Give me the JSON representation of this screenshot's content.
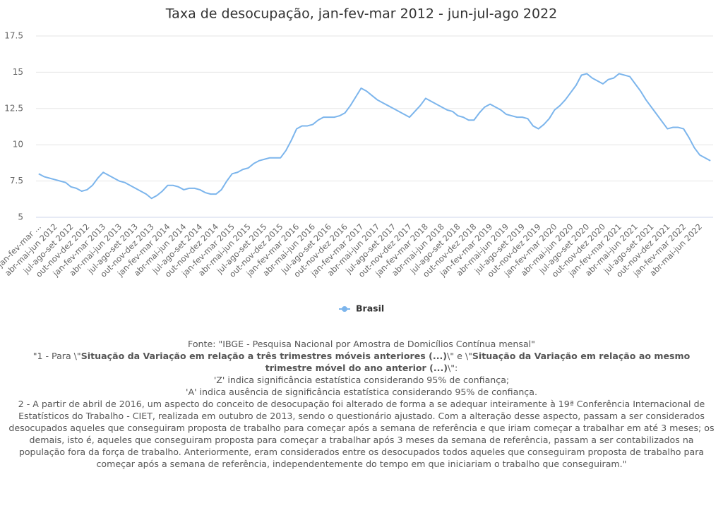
{
  "chart_data": {
    "type": "line",
    "title": "Taxa de desocupação, jan-fev-mar 2012 - jun-jul-ago 2022",
    "categories": [
      "jan-fev-mar ...",
      null,
      null,
      "abr-mai-jun 2012",
      null,
      null,
      "jul-ago-set 2012",
      null,
      null,
      "out-nov-dez 2012",
      null,
      null,
      "jan-fev-mar 2013",
      null,
      null,
      "abr-mai-jun 2013",
      null,
      null,
      "jul-ago-set 2013",
      null,
      null,
      "out-nov-dez 2013",
      null,
      null,
      "jan-fev-mar 2014",
      null,
      null,
      "abr-mai-jun 2014",
      null,
      null,
      "jul-ago-set 2014",
      null,
      null,
      "out-nov-dez 2014",
      null,
      null,
      "jan-fev-mar 2015",
      null,
      null,
      "abr-mai-jun 2015",
      null,
      null,
      "jul-ago-set 2015",
      null,
      null,
      "out-nov-dez 2015",
      null,
      null,
      "jan-fev-mar 2016",
      null,
      null,
      "abr-mai-jun 2016",
      null,
      null,
      "jul-ago-set 2016",
      null,
      null,
      "out-nov-dez 2016",
      null,
      null,
      "jan-fev-mar 2017",
      null,
      null,
      "abr-mai-jun 2017",
      null,
      null,
      "jul-ago-set 2017",
      null,
      null,
      "out-nov-dez 2017",
      null,
      null,
      "jan-fev-mar 2018",
      null,
      null,
      "abr-mai-jun 2018",
      null,
      null,
      "jul-ago-set 2018",
      null,
      null,
      "out-nov-dez 2018",
      null,
      null,
      "jan-fev-mar 2019",
      null,
      null,
      "abr-mai-jun 2019",
      null,
      null,
      "jul-ago-set 2019",
      null,
      null,
      "out-nov-dez 2019",
      null,
      null,
      "jan-fev-mar 2020",
      null,
      null,
      "abr-mai-jun 2020",
      null,
      null,
      "jul-ago-set 2020",
      null,
      null,
      "out-nov-dez 2020",
      null,
      null,
      "jan-fev-mar 2021",
      null,
      null,
      "abr-mai-jun 2021",
      null,
      null,
      "jul-ago-set 2021",
      null,
      null,
      "out-nov-dez 2021",
      null,
      null,
      "jan-fev-mar 2022",
      null,
      null,
      "abr-mai-jun 2022",
      null,
      null
    ],
    "series": [
      {
        "name": "Brasil",
        "color": "#7cb5ec",
        "values": [
          8.0,
          7.8,
          7.7,
          7.6,
          7.5,
          7.4,
          7.1,
          7.0,
          6.8,
          6.9,
          7.2,
          7.7,
          8.1,
          7.9,
          7.7,
          7.5,
          7.4,
          7.2,
          7.0,
          6.8,
          6.6,
          6.3,
          6.5,
          6.8,
          7.2,
          7.2,
          7.1,
          6.9,
          7.0,
          7.0,
          6.9,
          6.7,
          6.6,
          6.6,
          6.9,
          7.5,
          8.0,
          8.1,
          8.3,
          8.4,
          8.7,
          8.9,
          9.0,
          9.1,
          9.1,
          9.1,
          9.6,
          10.3,
          11.1,
          11.3,
          11.3,
          11.4,
          11.7,
          11.9,
          11.9,
          11.9,
          12.0,
          12.2,
          12.7,
          13.3,
          13.9,
          13.7,
          13.4,
          13.1,
          12.9,
          12.7,
          12.5,
          12.3,
          12.1,
          11.9,
          12.3,
          12.7,
          13.2,
          13.0,
          12.8,
          12.6,
          12.4,
          12.3,
          12.0,
          11.9,
          11.7,
          11.7,
          12.2,
          12.6,
          12.8,
          12.6,
          12.4,
          12.1,
          12.0,
          11.9,
          11.9,
          11.8,
          11.3,
          11.1,
          11.4,
          11.8,
          12.4,
          12.7,
          13.1,
          13.6,
          14.1,
          14.8,
          14.9,
          14.6,
          14.4,
          14.2,
          14.5,
          14.6,
          14.9,
          14.8,
          14.7,
          14.2,
          13.7,
          13.1,
          12.6,
          12.1,
          11.6,
          11.1,
          11.2,
          11.2,
          11.1,
          10.5,
          9.8,
          9.3,
          9.1,
          8.9
        ]
      }
    ],
    "ylim": [
      5,
      17.5
    ],
    "yticks": [
      5,
      7.5,
      10,
      12.5,
      15,
      17.5
    ],
    "grid": true,
    "legend": "bottom"
  },
  "notes": {
    "source": "Fonte: \"IBGE - Pesquisa Nacional por Amostra de Domicílios Contínua mensal\"",
    "note1": {
      "prefix": "\"1 - Para \\\"",
      "bold1": "Situação da Variação em relação a três trimestres móveis anteriores (...)",
      "mid": "\\\" e \\\"",
      "bold2": "Situação da Variação em relação ao mesmo trimestre móvel do ano anterior (...)",
      "suffix": "\\\":"
    },
    "z": "'Z' indica significância estatística considerando 95% de confiança;",
    "a": "'A' indica ausência de significância estatística considerando 95% de confiança.",
    "note2": "2 - A partir de abril de 2016, um aspecto do conceito de desocupação foi alterado de forma a se adequar inteiramente à 19ª Conferência Internacional de Estatísticos do Trabalho - CIET, realizada em outubro de 2013, sendo o questionário ajustado. Com a alteração desse aspecto, passam a ser considerados desocupados aqueles que conseguiram proposta de trabalho para começar após a semana de referência e que iriam começar a trabalhar em até 3 meses; os demais, isto é, aqueles que conseguiram proposta para começar a trabalhar após 3 meses da semana de referência, passam a ser contabilizados na população fora da força de trabalho. Anteriormente, eram considerados entre os desocupados todos aqueles que conseguiram proposta de trabalho para começar após a semana de referência, independentemente do tempo em que iniciariam o trabalho que conseguiram.\""
  }
}
